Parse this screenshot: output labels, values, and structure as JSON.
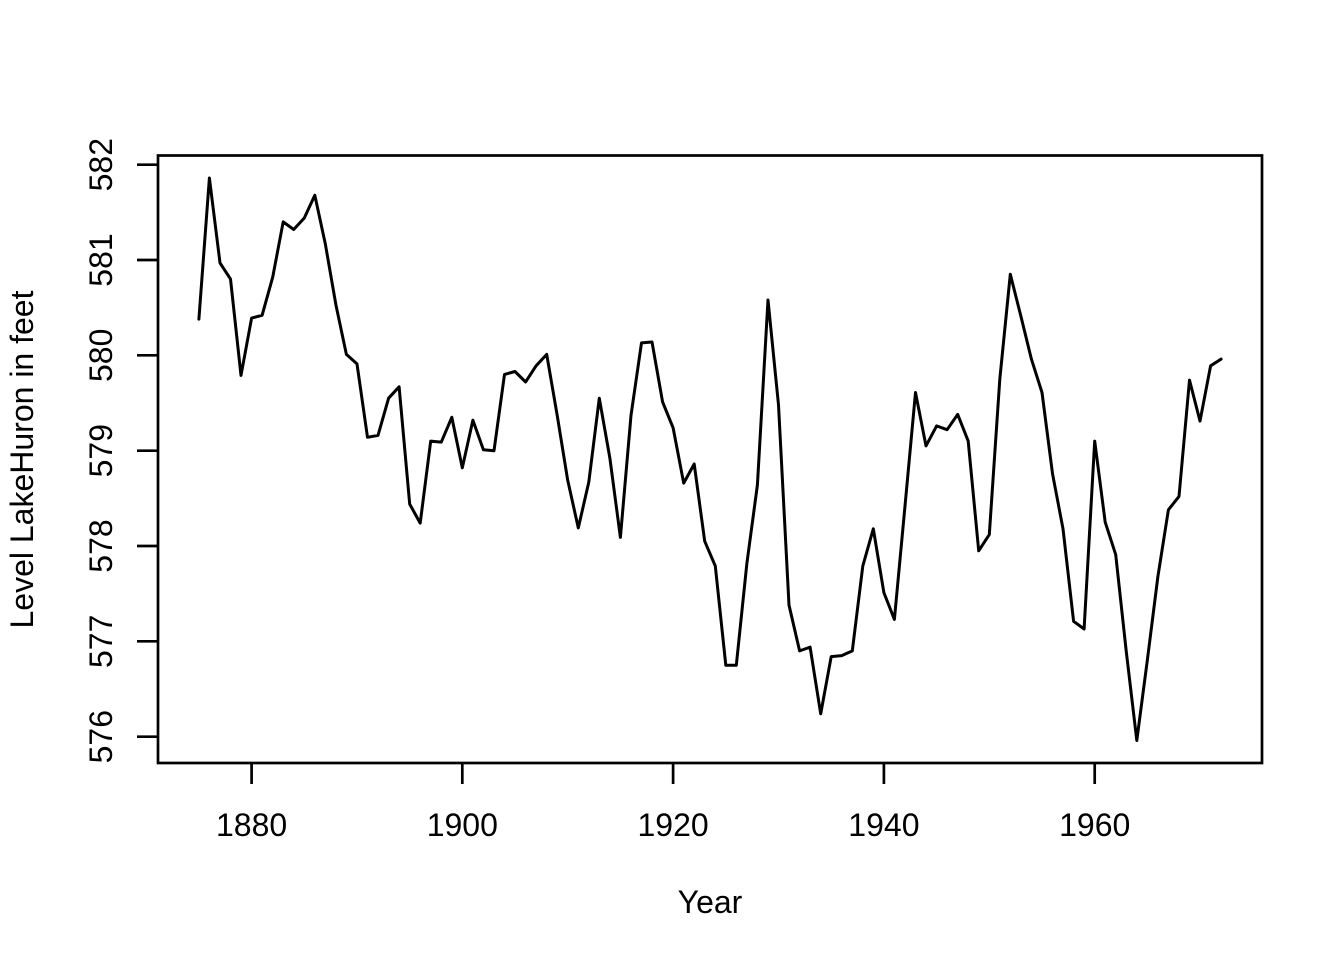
{
  "page": {
    "background": "#ffffff",
    "foreground": "#000000"
  },
  "chart_data": {
    "type": "line",
    "title": "",
    "xlabel": "Year",
    "ylabel": "Level LakeHuron in feet",
    "x_start": 1875,
    "x_end": 1972,
    "x_interval": 1,
    "series": [
      {
        "name": "LakeHuron",
        "color": "#000000",
        "values": [
          580.38,
          581.86,
          580.97,
          580.8,
          579.79,
          580.39,
          580.42,
          580.82,
          581.4,
          581.32,
          581.44,
          581.68,
          581.17,
          580.53,
          580.01,
          579.91,
          579.14,
          579.16,
          579.55,
          579.67,
          578.44,
          578.24,
          579.1,
          579.09,
          579.35,
          578.82,
          579.32,
          579.01,
          579.0,
          579.8,
          579.83,
          579.72,
          579.89,
          580.01,
          579.37,
          578.69,
          578.19,
          578.67,
          579.55,
          578.92,
          578.09,
          579.37,
          580.13,
          580.14,
          579.51,
          579.24,
          578.66,
          578.86,
          578.05,
          577.79,
          576.75,
          576.75,
          577.82,
          578.64,
          580.58,
          579.48,
          577.38,
          576.9,
          576.94,
          576.24,
          576.84,
          576.85,
          576.9,
          577.79,
          578.18,
          577.51,
          577.23,
          578.42,
          579.61,
          579.05,
          579.26,
          579.22,
          579.38,
          579.1,
          577.95,
          578.12,
          579.75,
          580.85,
          580.41,
          579.96,
          579.61,
          578.76,
          578.18,
          577.21,
          577.13,
          579.1,
          578.25,
          577.91,
          576.89,
          575.96,
          576.8,
          577.68,
          578.38,
          578.52,
          579.74,
          579.31,
          579.89,
          579.96
        ]
      }
    ],
    "xticks": [
      1880,
      1900,
      1920,
      1940,
      1960
    ],
    "yticks": [
      576,
      577,
      578,
      579,
      580,
      581,
      582
    ],
    "xlim": [
      1871.12,
      1975.88
    ],
    "ylim": [
      575.724,
      582.096
    ],
    "grid": false,
    "legend": "none",
    "background": "#ffffff"
  }
}
